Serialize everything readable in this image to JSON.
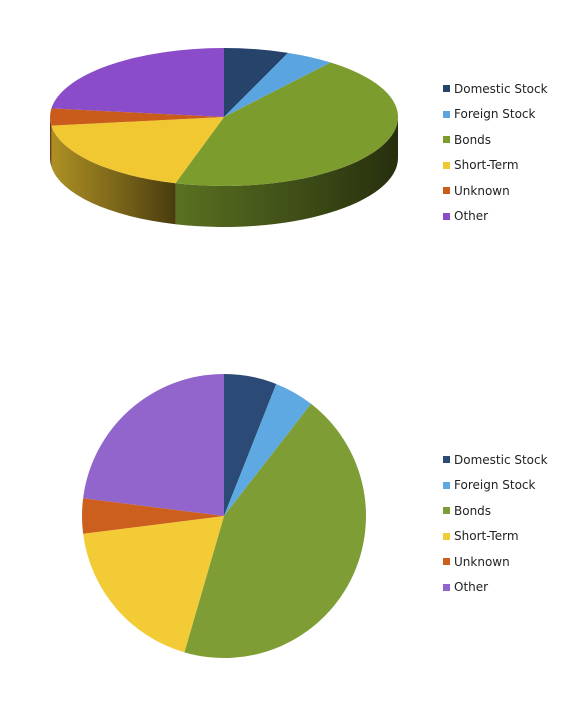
{
  "chart_data": [
    {
      "type": "pie",
      "variant": "3d",
      "title": "",
      "categories": [
        "Domestic Stock",
        "Foreign Stock",
        "Bonds",
        "Short-Term",
        "Unknown",
        "Other"
      ],
      "values": [
        6,
        4.5,
        44,
        18.5,
        4,
        23
      ],
      "colors": [
        "#26436b",
        "#5aa5e0",
        "#7d9c2e",
        "#f2c832",
        "#c95c1a",
        "#8a4cc9"
      ],
      "legend": "right"
    },
    {
      "type": "pie",
      "variant": "2d",
      "title": "",
      "categories": [
        "Domestic Stock",
        "Foreign Stock",
        "Bonds",
        "Short-Term",
        "Unknown",
        "Other"
      ],
      "values": [
        6,
        4.5,
        44,
        18.5,
        4,
        23
      ],
      "colors": [
        "#2b4b76",
        "#5fa9e3",
        "#7f9d35",
        "#f3cb36",
        "#cc5f1d",
        "#9165cc"
      ],
      "legend": "right"
    }
  ]
}
